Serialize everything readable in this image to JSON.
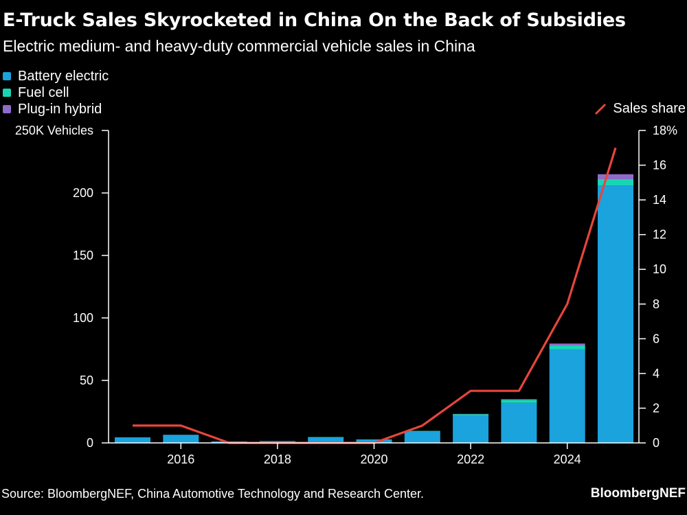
{
  "title": "E-Truck Sales Skyrocketed in China On the Back of Subsidies",
  "subtitle": "Electric medium- and heavy-duty commercial vehicle sales in China",
  "source": "Source: BloombergNEF, China Automotive Technology and Research Center.",
  "brand": "BloombergNEF",
  "legend": {
    "battery": "Battery electric",
    "fuel": "Fuel cell",
    "plugin": "Plug-in hybrid",
    "share": "Sales share"
  },
  "colors": {
    "battery": "#1aa3dd",
    "fuel": "#18d6b4",
    "plugin": "#8e6cc9",
    "share": "#e8453c",
    "axis": "#ffffff"
  },
  "chart_data": {
    "type": "bar",
    "x": [
      2015,
      2016,
      2017,
      2018,
      2019,
      2020,
      2021,
      2022,
      2023,
      2024,
      2025
    ],
    "series": [
      {
        "name": "Battery electric",
        "key": "battery",
        "values": [
          4.5,
          6.5,
          1.2,
          1.5,
          4.5,
          2.5,
          9,
          22,
          32,
          75,
          206
        ]
      },
      {
        "name": "Fuel cell",
        "key": "fuel",
        "values": [
          0,
          0,
          0,
          0,
          0.2,
          0.3,
          0.6,
          1,
          2.5,
          3,
          5
        ]
      },
      {
        "name": "Plug-in hybrid",
        "key": "plugin",
        "values": [
          0,
          0,
          0,
          0,
          0,
          0,
          0,
          0.2,
          0.5,
          1.5,
          4
        ]
      }
    ],
    "line": {
      "name": "Sales share",
      "values": [
        1,
        1,
        0,
        0,
        0,
        0,
        1,
        3,
        3,
        8,
        17
      ]
    },
    "y_left": {
      "label": "250K Vehicles",
      "lim": [
        0,
        250
      ],
      "ticks": [
        0,
        50,
        100,
        150,
        200
      ],
      "ticklabels": [
        "0",
        "50",
        "100",
        "150",
        "200"
      ]
    },
    "y_right": {
      "label": "18%",
      "lim": [
        0,
        18
      ],
      "ticks": [
        0,
        2,
        4,
        6,
        8,
        10,
        12,
        14,
        16
      ],
      "ticklabels": [
        "0",
        "2",
        "4",
        "6",
        "8",
        "10",
        "12",
        "14",
        "16"
      ]
    },
    "x_ticks": [
      2016,
      2018,
      2020,
      2022,
      2024
    ],
    "x_ticklabels": [
      "2016",
      "2018",
      "2020",
      "2022",
      "2024"
    ]
  }
}
